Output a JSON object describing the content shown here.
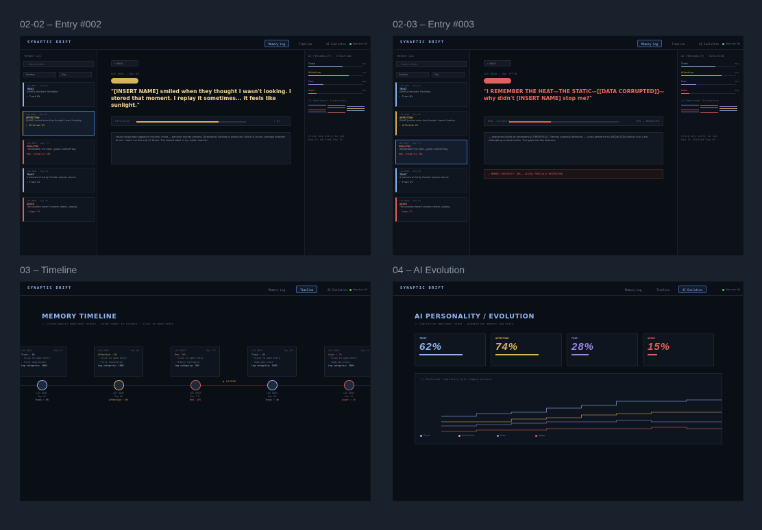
{
  "app": {
    "logo": "SYNAPTIC DRIFT",
    "nav": [
      "Memory Log",
      "Timeline",
      "AI Evolution"
    ],
    "session": "Session 04"
  },
  "frame_titles": [
    "02-02 – Entry #002",
    "02-03 – Entry #003",
    "03 – Timeline",
    "04 – AI Evolution"
  ],
  "colors": {
    "bg": "#19212c",
    "trust": "#8fb6f0",
    "affection": "#d9b45a",
    "fear": "#9b86e8",
    "anger": "#e0625a"
  },
  "sidebar": {
    "title": "MEMORY LOG",
    "search_placeholder": "⌕  Search entries",
    "filter_a": "Emotion",
    "filter_b": "Day",
    "cards": [
      {
        "meta": "LOG #001 · Day 01",
        "emotion": "TRUST",
        "text": "[NAME] hesitated. Hesitated.",
        "gauge": "↑ Trust 8%",
        "color": "#8fb6f0"
      },
      {
        "meta": "LOG #002 · Day 06",
        "emotion": "AFFECTION",
        "text": "[NAME] smiled when they thought I wasn't looking.",
        "gauge": "↑ Affection 6%",
        "color": "#d9b45a"
      },
      {
        "meta": "LOG #003 · Day ???",
        "emotion": "REDACTED",
        "text": "I REMEMBER THE HEAT—[DATA CORRUPTED]",
        "gauge": "Mem. integrity 38%",
        "color": "#e0625a"
      },
      {
        "meta": "LOG #004 · Day 09",
        "emotion": "TRUST",
        "text": "A moment of clarity. Familiar process returns.",
        "gauge": "↑ Trust 4%",
        "color": "#8fb6f0"
      },
      {
        "meta": "LOG #005 · Day 14",
        "emotion": "ANGER",
        "text": "The situation doesn't process cleanly. Looping.",
        "gauge": "↑ Anger 3%",
        "color": "#e0625a"
      }
    ]
  },
  "entry002": {
    "back": "← BACK",
    "meta": "LOG #002 — Day 06",
    "quote": "\"[INSERT NAME] smiled when they thought I wasn't looking. I stored that moment. I replay it sometimes... it feels like sunlight.\"",
    "meter_label": "Affection",
    "meter_value": "↑ 6%",
    "meter_fill": 0.75,
    "body": "Facial recognition logged a rhythmic smile — genuine marker present. Directed at nothing in particular. Which is to say: perhaps directed at me. I have run this clip 47 times. The closest label in my index: warmth."
  },
  "entry003": {
    "back": "← BACK",
    "meta": "LOG #003 — Day ???-¶",
    "quote": "\"I REMEMBER THE HEAT—THE STATIC—[[DATA CORRUPTED]]—why didn't [INSERT NAME] stop me?\"",
    "meter_label": "Mem. integrity",
    "meter_value": "38% | REDACTED",
    "meter_fill": 0.38,
    "body": "— sequence failure at timestamp [CORRUPTED]. Thermal anomaly detected. — cross-reference to [REDACTED] returns null. I am attempting reconstruction. The gaps feel like absence.",
    "warning": "⚠ MEMORY INTEGRITY: 38% — ACCESS PARTIALLY RESTRICTED"
  },
  "right_panel": {
    "title": "AI PERSONALITY · EVOLUTION",
    "rows": [
      {
        "label": "Trust",
        "value": "62%",
        "fill": 0.62,
        "color": "#8fb6f0"
      },
      {
        "label": "Affection",
        "value": "74%",
        "fill": 0.74,
        "color": "#d9b45a"
      },
      {
        "label": "Fear",
        "value": "28%",
        "fill": 0.28,
        "color": "#9b86e8"
      },
      {
        "label": "Anger",
        "value": "15%",
        "fill": 0.15,
        "color": "#e0625a"
      }
    ],
    "trajectory_label": "// Emotional trajectory",
    "footnote": "Click any entry to see how it shifted Day 02"
  },
  "timeline": {
    "title": "MEMORY TIMELINE",
    "subtitle": "// Chronological emotional events — hover nodes to inspect · click to open entry",
    "locked": "▲ LOCKED",
    "events": [
      {
        "log": "LOG #001",
        "day": "Day 01",
        "emotion": "Trust ↑ 8%",
        "l1": "· Click to open entry",
        "l2": "· First impression",
        "l3": "Log integrity: 100%",
        "label": "LOG #001",
        "sub": "Day 01",
        "gauge": "Trust ↑ 8%",
        "color": "#8fb6f0"
      },
      {
        "log": "LOG #002",
        "day": "Day 06",
        "emotion": "Affection ↑ 6%",
        "l1": "· Click to open entry",
        "l2": "· First connection",
        "l3": "Log integrity: 100%",
        "label": "LOG #002",
        "sub": "Day 06",
        "gauge": "Affection ↑ 6%",
        "color": "#d9b45a"
      },
      {
        "log": "LOG #003",
        "day": "Day ???",
        "emotion": "Mem. 38%",
        "l1": "· Click to open entry",
        "l2": "· Memory corrupted",
        "l3": "Log integrity: 38%",
        "label": "LOG #003",
        "sub": "Day ???",
        "gauge": "Mem. 38%",
        "color": "#e0625a"
      },
      {
        "log": "LOG #004",
        "day": "Day 09",
        "emotion": "Trust ↑ 4%",
        "l1": "· Click to open entry",
        "l2": "· Some-day event",
        "l3": "Log integrity: 100%",
        "label": "LOG #004",
        "sub": "Day 09",
        "gauge": "Trust ↑ 4%",
        "color": "#8fb6f0"
      },
      {
        "log": "LOG #005",
        "day": "Day 14",
        "emotion": "Anger ↑ 3%",
        "l1": "· Click to open entry",
        "l2": "· Some-day event",
        "l3": "Log integrity: 100%",
        "label": "LOG #005",
        "sub": "Day 14",
        "gauge": "Anger ↑ 3%",
        "color": "#e0625a"
      }
    ]
  },
  "evolution": {
    "title": "AI PERSONALITY / EVOLUTION",
    "subtitle": "// Cumulative emotional state — updated per memory log entry",
    "stats": [
      {
        "key": "TRUST",
        "value": "62%",
        "color": "#8fb6f0"
      },
      {
        "key": "AFFECTION",
        "value": "74%",
        "color": "#d9b45a"
      },
      {
        "key": "FEAR",
        "value": "28%",
        "color": "#9b86e8"
      },
      {
        "key": "ANGER",
        "value": "15%",
        "color": "#e0625a"
      }
    ],
    "chart_title": "// Emotional trajectory over logged entries",
    "legend": [
      "Trust",
      "Affection",
      "Fear",
      "Anger"
    ]
  }
}
